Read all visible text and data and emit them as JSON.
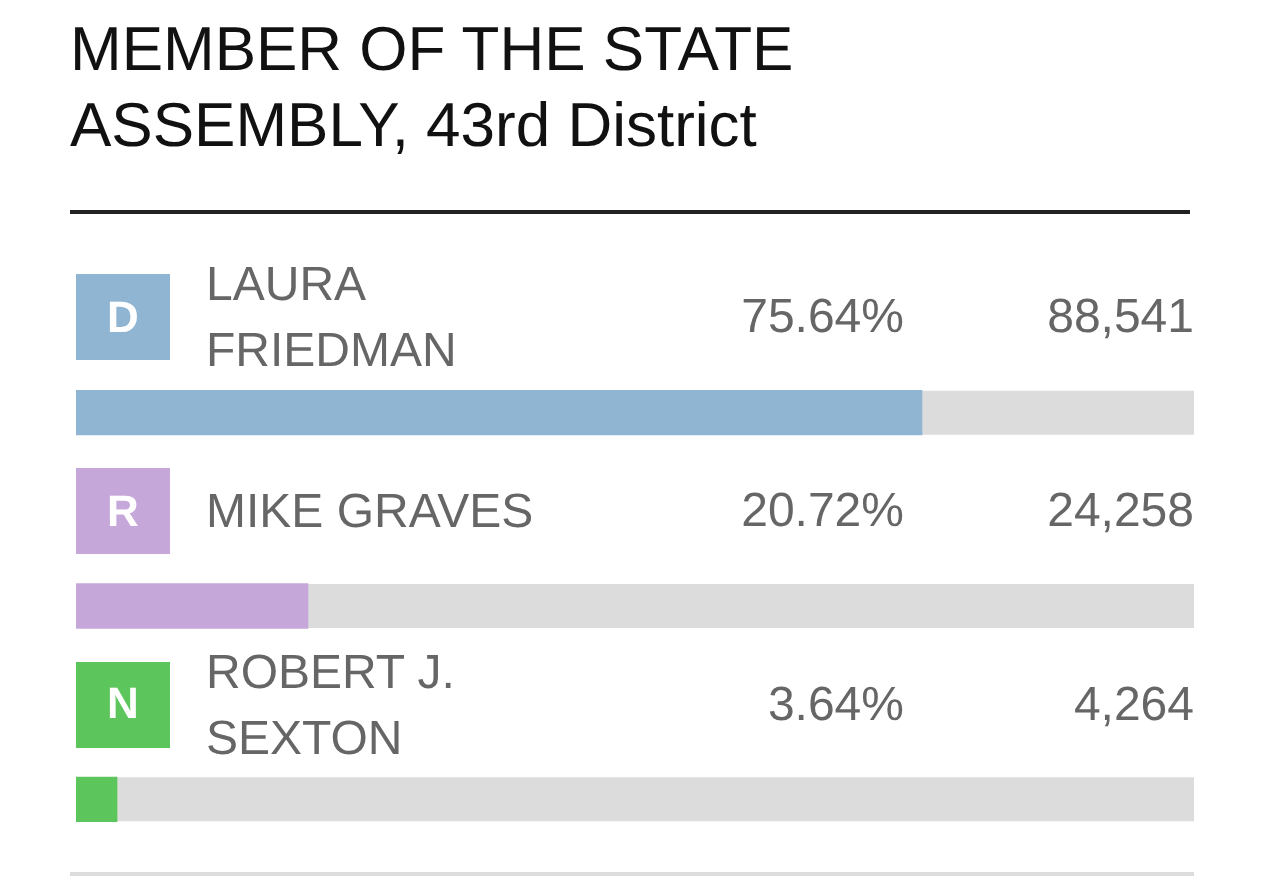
{
  "chart_data": {
    "type": "bar",
    "orientation": "horizontal",
    "title": "MEMBER OF THE STATE ASSEMBLY, 43rd District",
    "categories": [
      "LAURA FRIEDMAN",
      "MIKE GRAVES",
      "ROBERT J. SEXTON"
    ],
    "values": [
      75.64,
      20.72,
      3.64
    ],
    "colors": [
      "#8fb5d3",
      "#c6a7da",
      "#5cc55b"
    ],
    "value_labels": [
      "75.64%",
      "20.72%",
      "3.64%"
    ],
    "annotations": [
      "D",
      "88,541",
      "R",
      "24,258",
      "N",
      "4,264"
    ],
    "xlim": [
      0,
      100
    ],
    "tick_labels": false
  }
}
